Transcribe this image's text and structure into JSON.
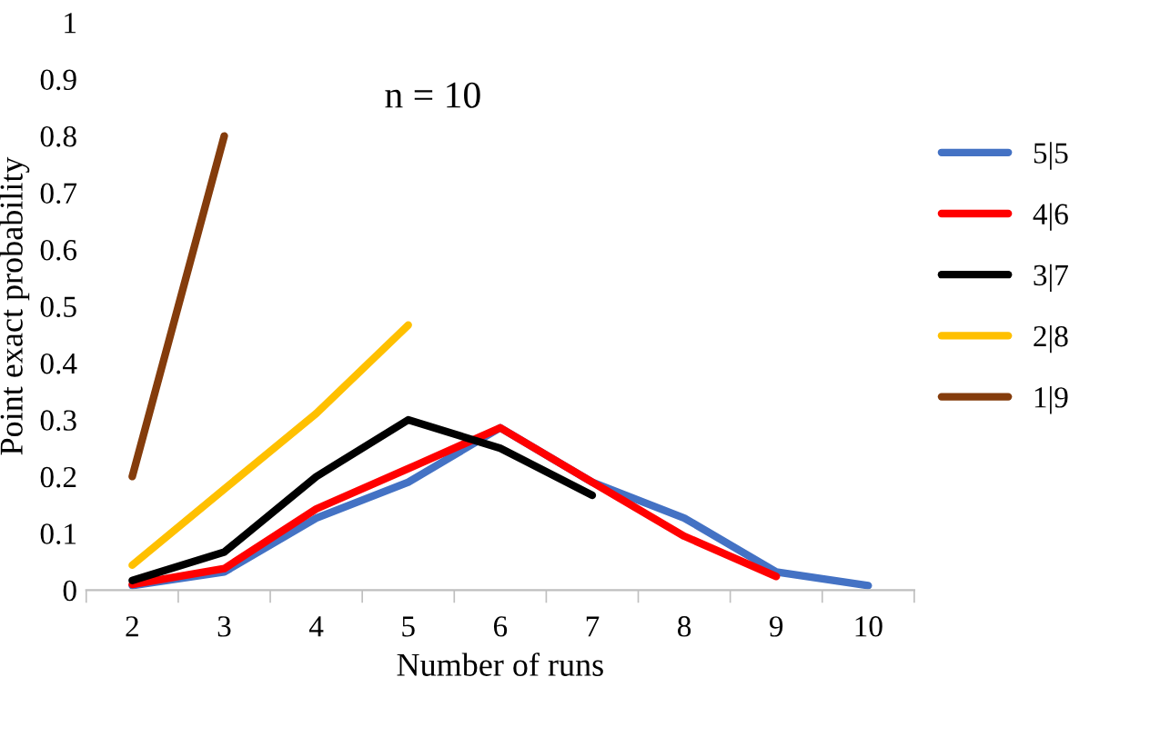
{
  "chart_data": {
    "type": "line",
    "xlabel": "Number of runs",
    "ylabel": "Point exact probability",
    "annotations": [
      "n = 10"
    ],
    "categories": [
      "2",
      "3",
      "4",
      "5",
      "6",
      "7",
      "8",
      "9",
      "10"
    ],
    "series": [
      {
        "name": "5|5",
        "color": "#4472c4",
        "values": [
          0.008,
          0.032,
          0.127,
          0.19,
          0.286,
          0.19,
          0.127,
          0.032,
          0.008
        ]
      },
      {
        "name": "4|6",
        "color": "#ff0000",
        "values": [
          0.01,
          0.038,
          0.143,
          0.214,
          0.286,
          0.19,
          0.095,
          0.024,
          null
        ]
      },
      {
        "name": "3|7",
        "color": "#000000",
        "values": [
          0.017,
          0.067,
          0.2,
          0.3,
          0.25,
          0.167,
          null,
          null,
          null
        ]
      },
      {
        "name": "2|8",
        "color": "#ffc000",
        "values": [
          0.044,
          0.178,
          0.311,
          0.467,
          null,
          null,
          null,
          null,
          null
        ]
      },
      {
        "name": "1|9",
        "color": "#843c0c",
        "values": [
          0.2,
          0.8,
          null,
          null,
          null,
          null,
          null,
          null,
          null
        ]
      }
    ],
    "ylim": [
      0,
      1
    ],
    "yticks": [
      0,
      0.1,
      0.2,
      0.3,
      0.4,
      0.5,
      0.6,
      0.7,
      0.8,
      0.9,
      1
    ],
    "legend": "right",
    "grid": false,
    "marker": "none",
    "line_style": "solid"
  }
}
